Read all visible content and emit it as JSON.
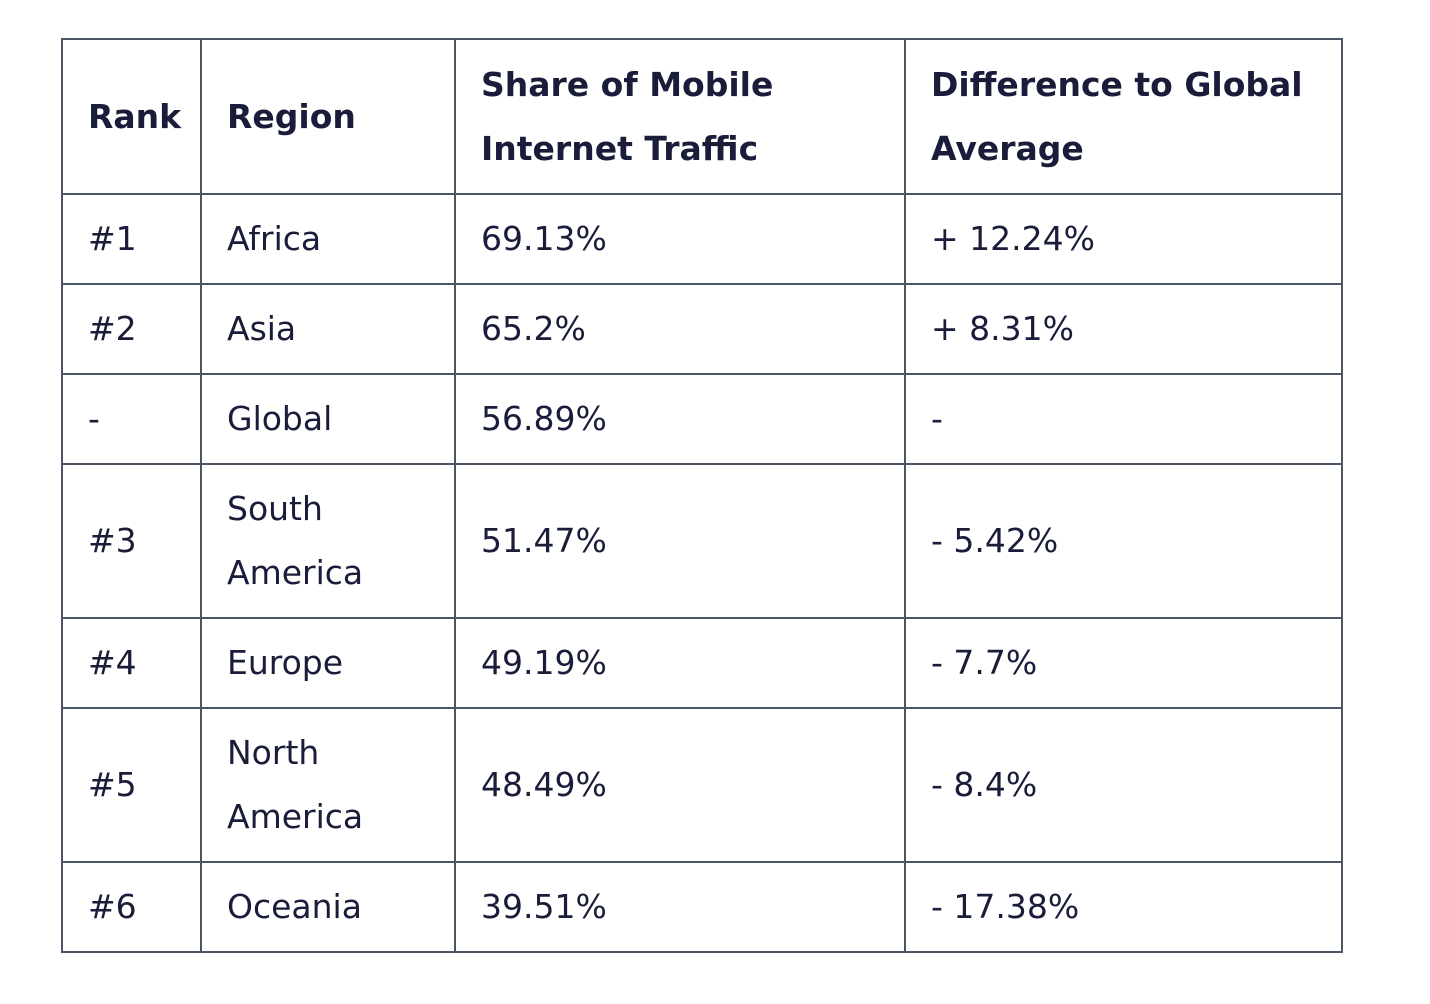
{
  "table": {
    "headers": {
      "rank": "Rank",
      "region": "Region",
      "share": "Share of Mobile Internet Traffic",
      "difference": "Difference to Global Average"
    },
    "rows": [
      {
        "rank": "#1",
        "region": "Africa",
        "share": "69.13%",
        "difference": "+ 12.24%"
      },
      {
        "rank": "#2",
        "region": "Asia",
        "share": "65.2%",
        "difference": "+ 8.31%"
      },
      {
        "rank": "-",
        "region": "Global",
        "share": "56.89%",
        "difference": "-"
      },
      {
        "rank": "#3",
        "region": "South America",
        "share": "51.47%",
        "difference": "- 5.42%"
      },
      {
        "rank": "#4",
        "region": "Europe",
        "share": "49.19%",
        "difference": "- 7.7%"
      },
      {
        "rank": "#5",
        "region": "North America",
        "share": "48.49%",
        "difference": "- 8.4%"
      },
      {
        "rank": "#6",
        "region": "Oceania",
        "share": "39.51%",
        "difference": "- 17.38%"
      }
    ]
  }
}
